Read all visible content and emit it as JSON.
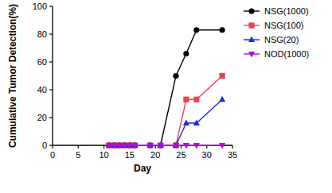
{
  "chart_data": {
    "type": "line",
    "x_label": "Day",
    "y_label": "Cumulative Tumor Detection(%)",
    "x": [
      11,
      12,
      13,
      14,
      15,
      16,
      19,
      21,
      24,
      26,
      28,
      33
    ],
    "series": [
      {
        "name": "NSG(1000)",
        "color": "#000000",
        "marker": "circle",
        "values": [
          0,
          0,
          0,
          0,
          0,
          0,
          0,
          0,
          50,
          66,
          83,
          83
        ]
      },
      {
        "name": "NSG(100)",
        "color": "#f0404f",
        "marker": "square",
        "values": [
          0,
          0,
          0,
          0,
          0,
          0,
          0,
          0,
          0,
          33,
          33,
          50
        ]
      },
      {
        "name": "NSG(20)",
        "color": "#1a2ee0",
        "marker": "triangle",
        "values": [
          0,
          0,
          0,
          0,
          0,
          0,
          0,
          0,
          0,
          16,
          16,
          33
        ]
      },
      {
        "name": "NOD(1000)",
        "color": "#b010d0",
        "marker": "triangle-down",
        "values": [
          0,
          0,
          0,
          0,
          0,
          0,
          0,
          0,
          0,
          0,
          0,
          0
        ]
      }
    ],
    "xlim": [
      0,
      35
    ],
    "xticks": [
      0,
      5,
      10,
      15,
      20,
      25,
      30,
      35
    ],
    "ylim": [
      0,
      100
    ],
    "yticks": [
      0,
      20,
      40,
      60,
      80,
      100
    ],
    "grid": false,
    "legend": "right"
  }
}
